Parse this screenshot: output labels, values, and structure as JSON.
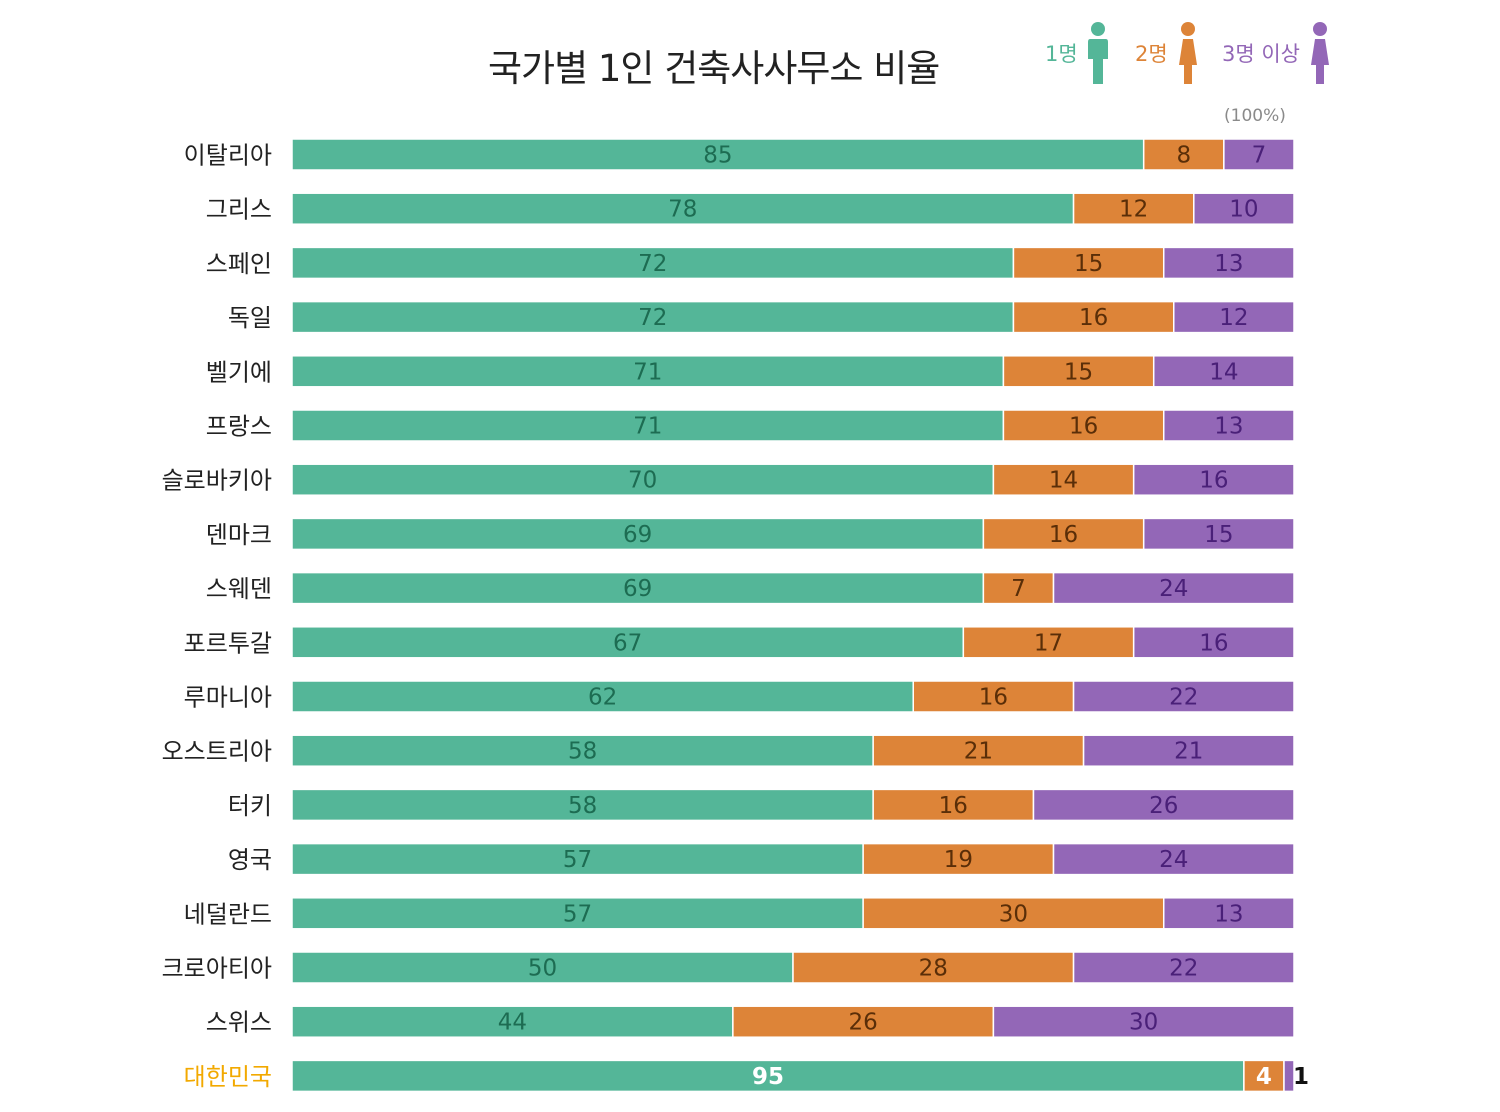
{
  "colors": {
    "one": "#54b698",
    "two": "#dd8438",
    "three": "#9367b7",
    "one_text": "#1d6c52",
    "two_text": "#5a2e08",
    "three_text": "#4a2078",
    "highlight_country": "#f2a900",
    "label_text": "#222222"
  },
  "chart_data": {
    "type": "bar",
    "orientation": "horizontal",
    "stacked": true,
    "title": "국가별 1인 건축사사무소 비율",
    "scale_note": "(100%)",
    "legend_placement": "top-right",
    "xlim": [
      0,
      100
    ],
    "grid": false,
    "categories": [
      "이탈리아",
      "그리스",
      "스페인",
      "독일",
      "벨기에",
      "프랑스",
      "슬로바키아",
      "덴마크",
      "스웨덴",
      "포르투갈",
      "루마니아",
      "오스트리아",
      "터키",
      "영국",
      "네덜란드",
      "크로아티아",
      "스위스",
      "대한민국"
    ],
    "highlight_category": "대한민국",
    "series": [
      {
        "name": "1명",
        "icon": "person-male-icon",
        "values": [
          85,
          78,
          72,
          72,
          71,
          71,
          70,
          69,
          69,
          67,
          62,
          58,
          58,
          57,
          57,
          50,
          44,
          95
        ]
      },
      {
        "name": "2명",
        "icon": "person-female-icon",
        "values": [
          8,
          12,
          15,
          16,
          15,
          16,
          14,
          16,
          7,
          17,
          16,
          21,
          16,
          19,
          30,
          28,
          26,
          4
        ]
      },
      {
        "name": "3명 이상",
        "icon": "person-female-icon",
        "values": [
          7,
          10,
          13,
          12,
          14,
          13,
          16,
          15,
          24,
          16,
          22,
          21,
          26,
          24,
          13,
          22,
          30,
          1
        ]
      }
    ]
  }
}
